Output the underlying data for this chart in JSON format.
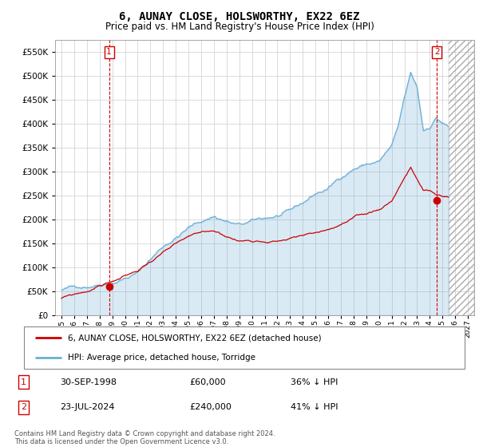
{
  "title": "6, AUNAY CLOSE, HOLSWORTHY, EX22 6EZ",
  "subtitle": "Price paid vs. HM Land Registry's House Price Index (HPI)",
  "legend_line1": "6, AUNAY CLOSE, HOLSWORTHY, EX22 6EZ (detached house)",
  "legend_line2": "HPI: Average price, detached house, Torridge",
  "note1_num": "1",
  "note1_date": "30-SEP-1998",
  "note1_price": "£60,000",
  "note1_hpi": "36% ↓ HPI",
  "note2_num": "2",
  "note2_date": "23-JUL-2024",
  "note2_price": "£240,000",
  "note2_hpi": "41% ↓ HPI",
  "footer": "Contains HM Land Registry data © Crown copyright and database right 2024.\nThis data is licensed under the Open Government Licence v3.0.",
  "hpi_color": "#6baed6",
  "hpi_fill_color": "#d4e8f5",
  "sale_color": "#cc0000",
  "marker1_x": 1998.75,
  "marker1_y": 60000,
  "marker2_x": 2024.55,
  "marker2_y": 240000,
  "ylim": [
    0,
    575000
  ],
  "xlim": [
    1994.5,
    2027.5
  ],
  "yticks": [
    0,
    50000,
    100000,
    150000,
    200000,
    250000,
    300000,
    350000,
    400000,
    450000,
    500000,
    550000
  ],
  "xticks": [
    1995,
    1996,
    1997,
    1998,
    1999,
    2000,
    2001,
    2002,
    2003,
    2004,
    2005,
    2006,
    2007,
    2008,
    2009,
    2010,
    2011,
    2012,
    2013,
    2014,
    2015,
    2016,
    2017,
    2018,
    2019,
    2020,
    2021,
    2022,
    2023,
    2024,
    2025,
    2026,
    2027
  ]
}
